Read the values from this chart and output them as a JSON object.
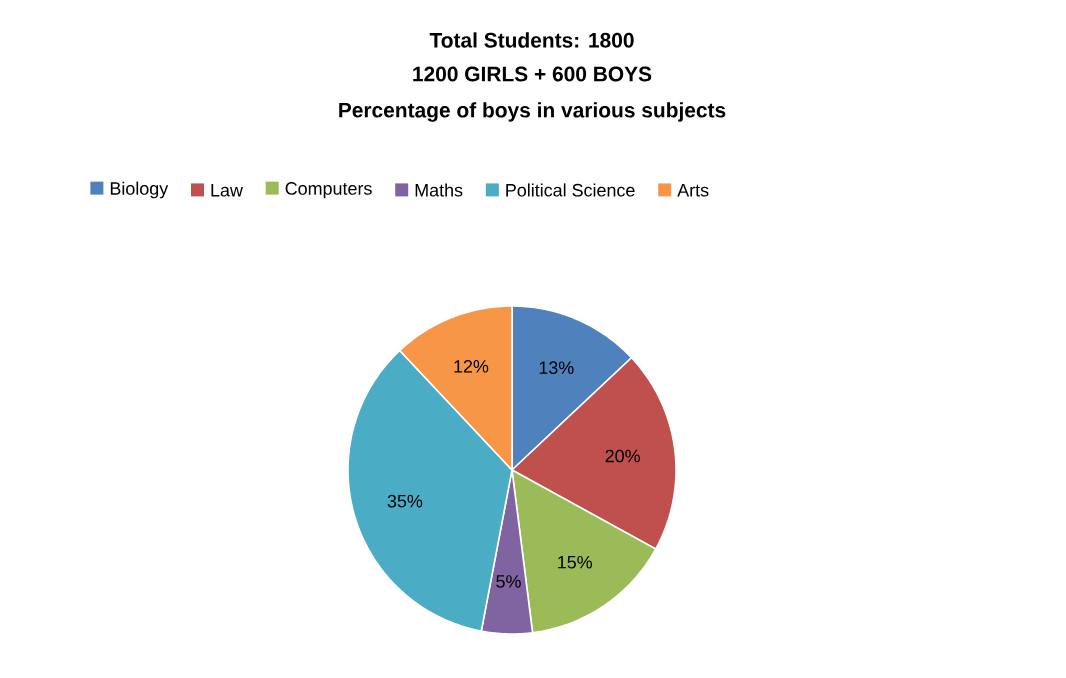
{
  "chart_data": {
    "type": "pie",
    "title": "Total Students: 1800",
    "subtitle": "1200 GIRLS + 600 BOYS",
    "annotations": [
      "Percentage of boys in various subjects"
    ],
    "categories": [
      "Biology",
      "Law",
      "Computers",
      "Maths",
      "Political Science",
      "Arts"
    ],
    "values": [
      13,
      20,
      15,
      5,
      35,
      12
    ],
    "value_labels": [
      "13%",
      "20%",
      "15%",
      "5%",
      "35%",
      "12%"
    ],
    "colors": [
      "#4f81bd",
      "#c0504d",
      "#9bbb59",
      "#8064a2",
      "#4bacc6",
      "#f79646"
    ],
    "legend": "top"
  }
}
